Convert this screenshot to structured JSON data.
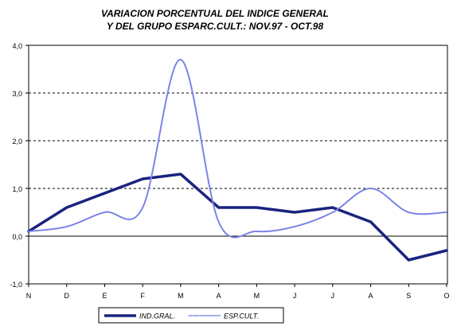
{
  "title_lines": [
    "VARIACION PORCENTUAL DEL INDICE GENERAL",
    "Y DEL GRUPO ESPARC.CULT.: NOV.97 - OCT.98"
  ],
  "chart_data": {
    "type": "line",
    "title": "VARIACION PORCENTUAL DEL INDICE GENERAL Y DEL GRUPO ESPARC.CULT.: NOV.97 - OCT.98",
    "categories": [
      "N",
      "D",
      "E",
      "F",
      "M",
      "A",
      "M",
      "J",
      "J",
      "A",
      "S",
      "O"
    ],
    "y_tick_labels": [
      "-1,0",
      "0,0",
      "1,0",
      "2,0",
      "3,0",
      "4,0"
    ],
    "ylim": [
      -1,
      4
    ],
    "grid": "dashed horizontal at 1, 2, 3; solid zero line",
    "legend_position": "bottom-center",
    "series": [
      {
        "name": "IND.GRAL.",
        "color": "#1a237e",
        "style": "thick solid",
        "values": [
          0.1,
          0.6,
          0.9,
          1.2,
          1.3,
          0.6,
          0.6,
          0.5,
          0.6,
          0.3,
          -0.5,
          -0.3
        ]
      },
      {
        "name": "ESP.CULT.",
        "color": "#7b83e6",
        "style": "thin smoothed",
        "values": [
          0.1,
          0.2,
          0.5,
          0.6,
          3.7,
          0.3,
          0.1,
          0.2,
          0.5,
          1.0,
          0.5,
          0.5
        ]
      }
    ]
  }
}
